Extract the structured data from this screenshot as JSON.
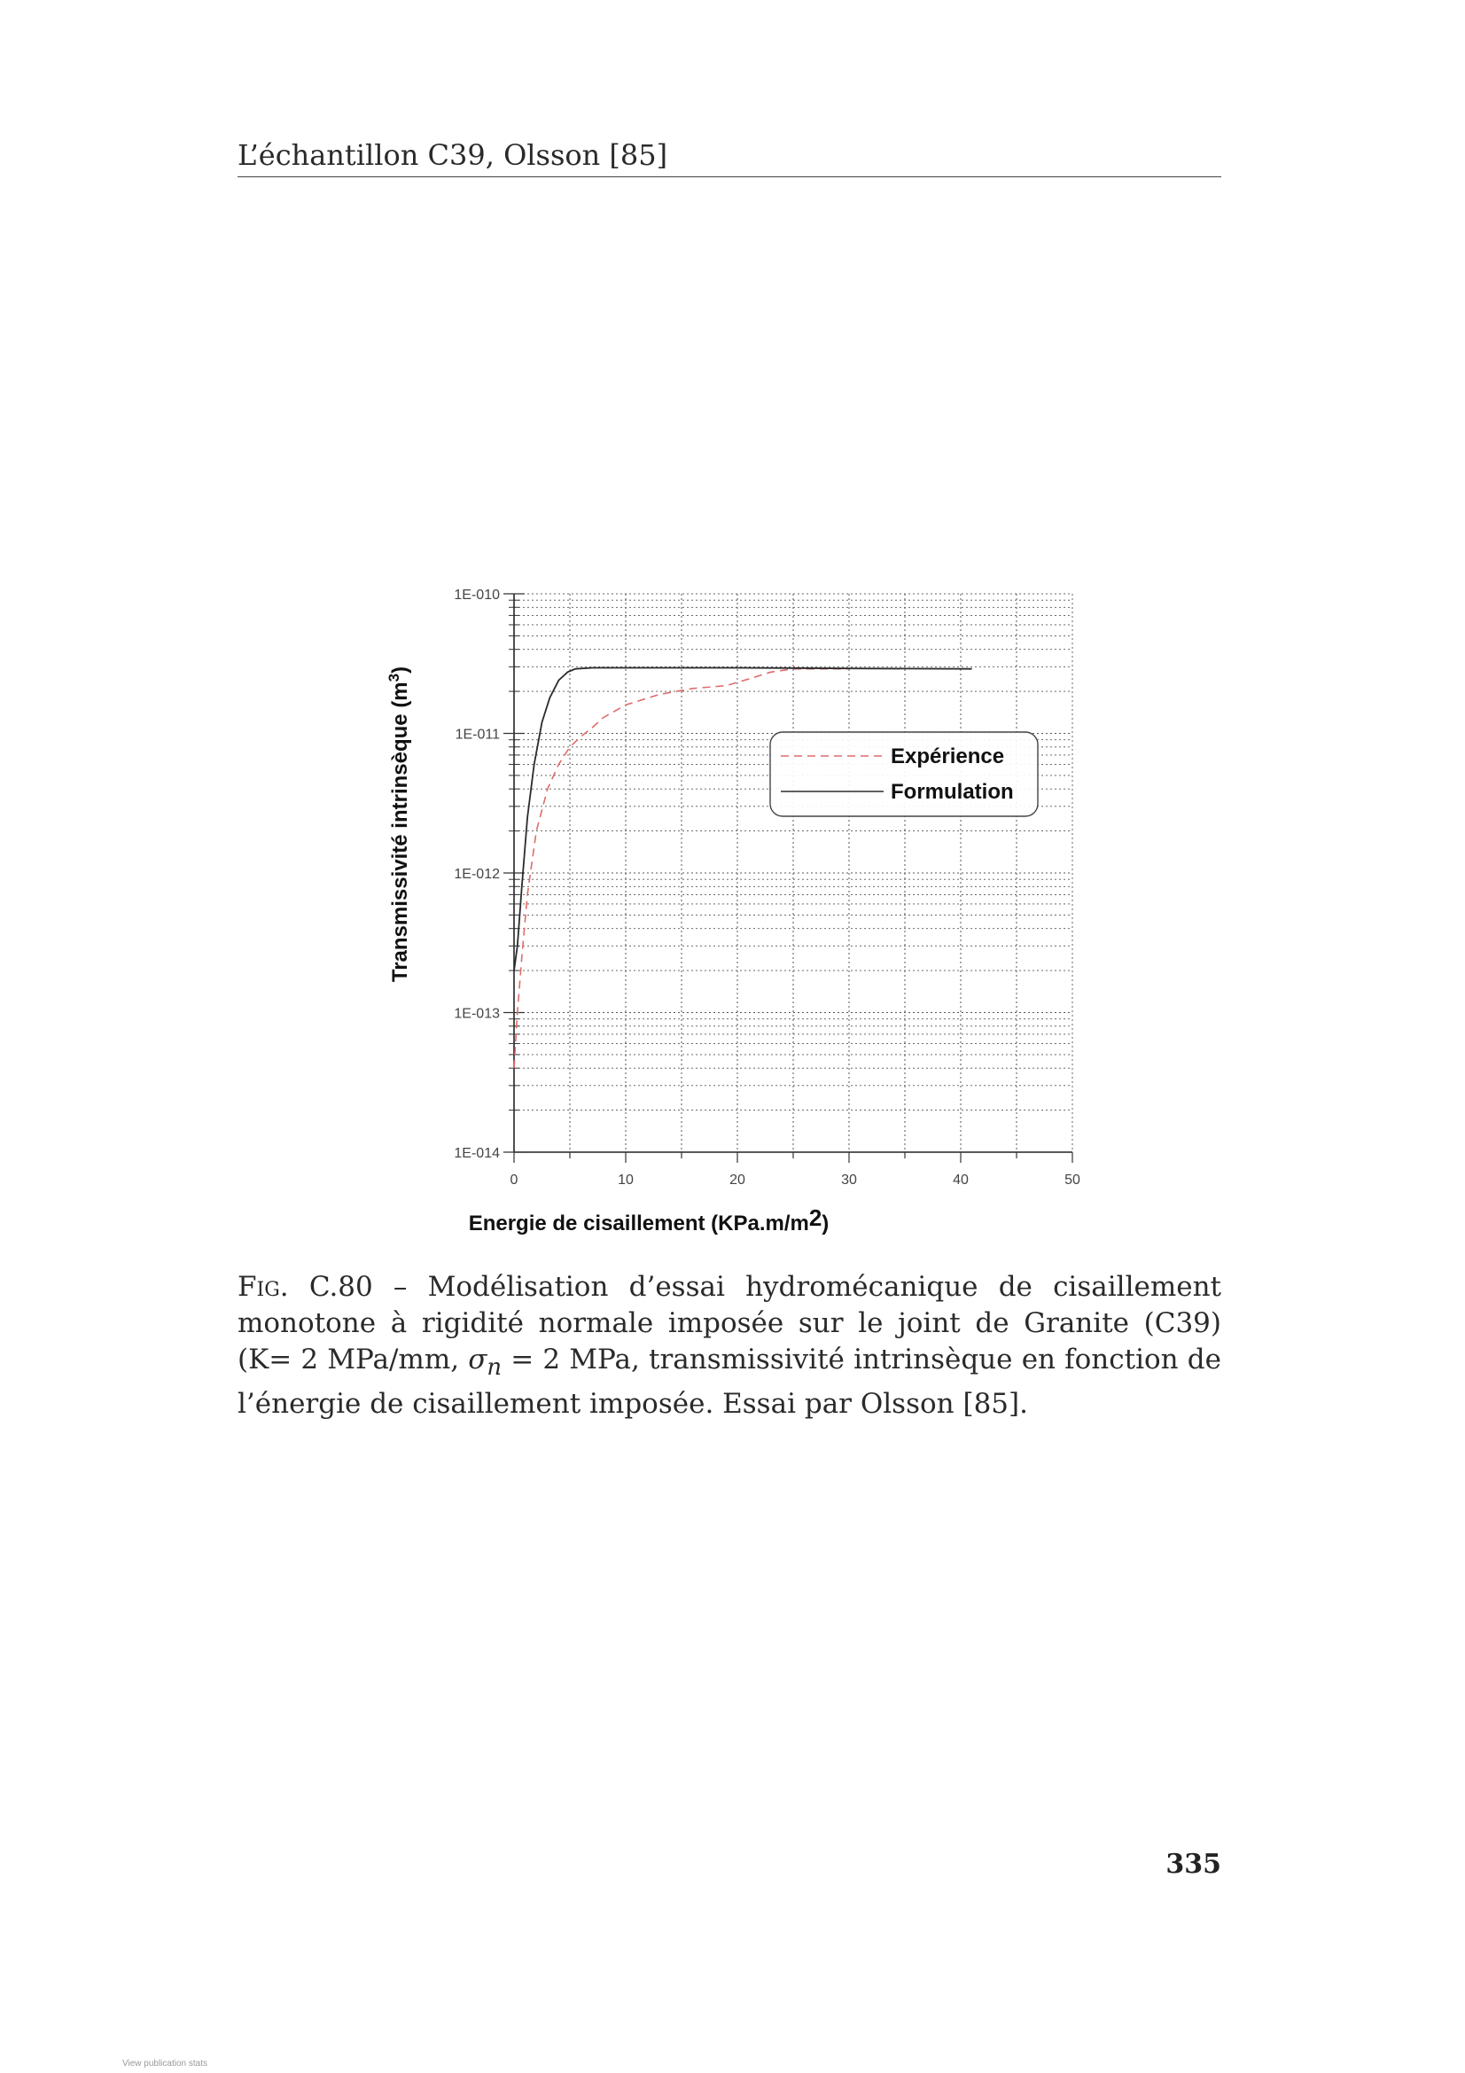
{
  "header": {
    "running_title": "L’échantillon C39, Olsson [85]"
  },
  "chart_data": {
    "type": "line",
    "xlabel_main": "Energie de cisaillement (KPa.m/m",
    "xlabel_sup": "2",
    "xlabel_close": ")",
    "ylabel_main": "Transmissivité intrinsèque (m",
    "ylabel_sup": "3",
    "ylabel_close": ")",
    "x_ticks": [
      "0",
      "10",
      "20",
      "30",
      "40",
      "50"
    ],
    "y_ticks": [
      "1E-010",
      "1E-011",
      "1E-012",
      "1E-013",
      "1E-014"
    ],
    "xlim": [
      0,
      50
    ],
    "ylim": [
      1e-14,
      1e-10
    ],
    "y_scale": "log",
    "grid": true,
    "legend_position": "upper-right",
    "series": [
      {
        "name": "Expérience",
        "style": "dashed",
        "color": "#e06b6b",
        "x": [
          0,
          0.3,
          0.7,
          1.2,
          2,
          3,
          4,
          5,
          6,
          7,
          8,
          10,
          13,
          16,
          19,
          21,
          23,
          25,
          30
        ],
        "y": [
          4e-14,
          1e-13,
          2.5e-13,
          7e-13,
          2e-12,
          4e-12,
          6e-12,
          8e-12,
          9.5e-12,
          1.1e-11,
          1.3e-11,
          1.6e-11,
          1.9e-11,
          2.1e-11,
          2.2e-11,
          2.45e-11,
          2.75e-11,
          2.9e-11,
          2.9e-11
        ]
      },
      {
        "name": "Formulation",
        "style": "solid",
        "color": "#2b2b2b",
        "x": [
          0,
          0.3,
          0.7,
          1.2,
          1.8,
          2.5,
          3.2,
          4,
          4.8,
          5.5,
          7,
          10,
          20,
          30,
          41
        ],
        "y": [
          2e-13,
          3e-13,
          8e-13,
          2.5e-12,
          6e-12,
          1.2e-11,
          1.8e-11,
          2.4e-11,
          2.75e-11,
          2.9e-11,
          2.95e-11,
          2.95e-11,
          2.95e-11,
          2.92e-11,
          2.9e-11
        ]
      }
    ]
  },
  "caption": {
    "label": "Fig.",
    "number": " C.80 – ",
    "text_1": "Modélisation d’essai hydromécanique de cisaillement monotone à rigidité normale imposée sur le joint de Granite (C39) (K= 2 MPa/mm, ",
    "sigma": "σ",
    "sigma_sub": "n",
    "text_2": " = 2 MPa, transmissivité intrinsèque en fonction de l’énergie de cisaillement imposée. Essai par Olsson [85]."
  },
  "page_number": "335",
  "footer_note": "View publication stats"
}
